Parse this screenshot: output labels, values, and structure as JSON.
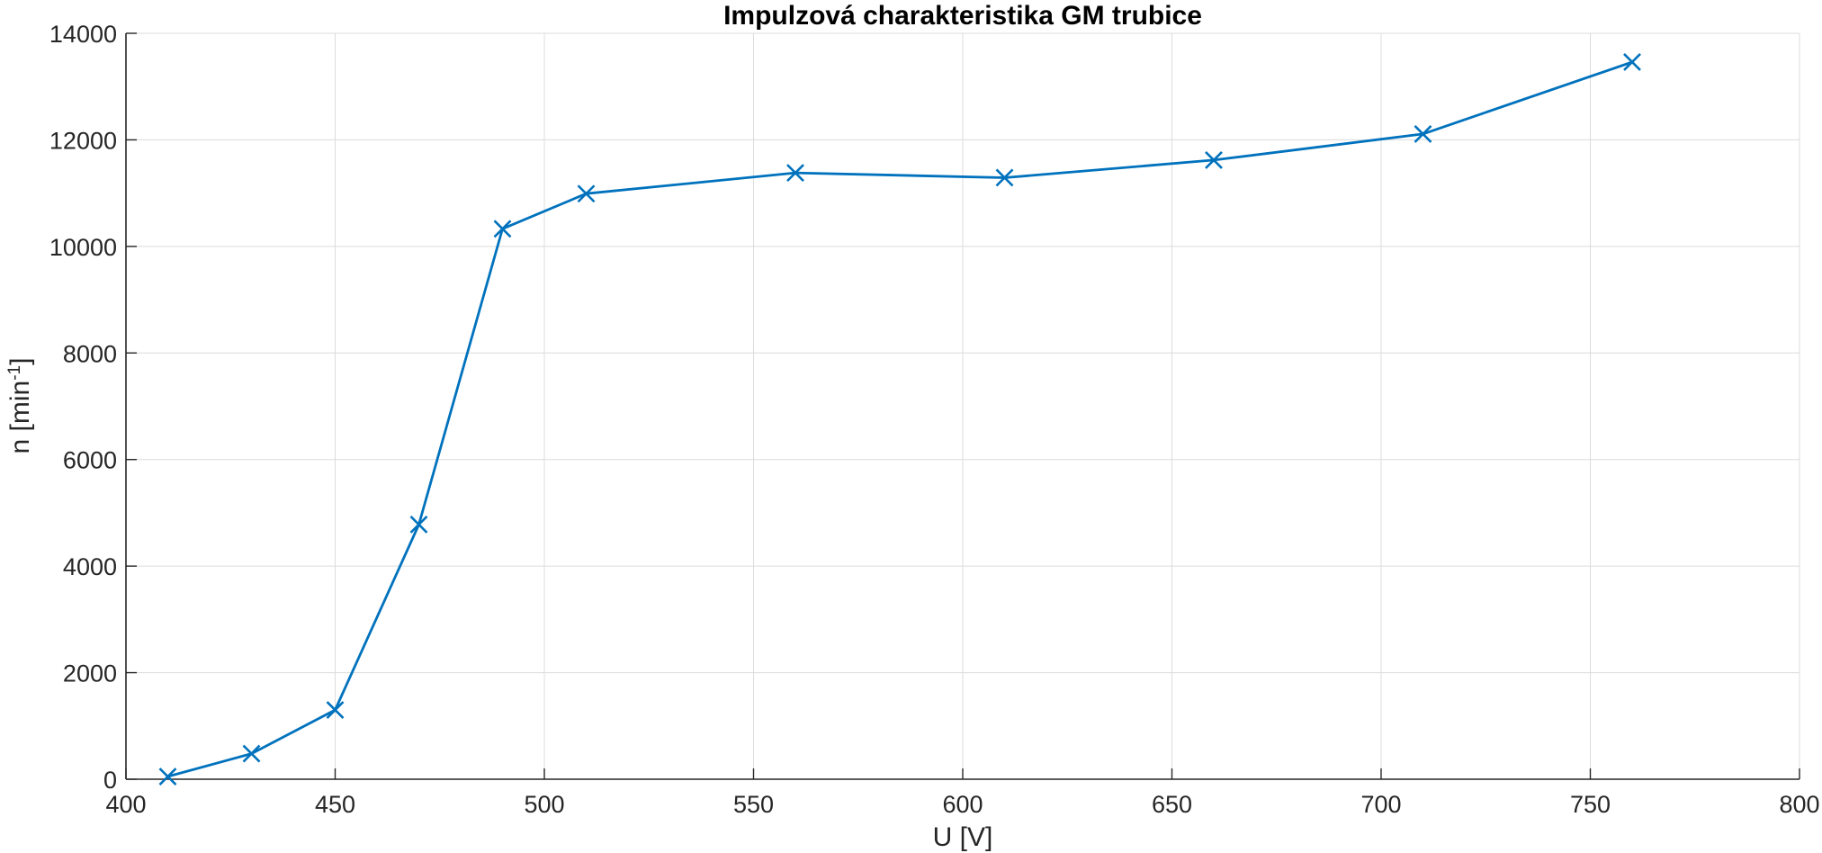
{
  "chart_data": {
    "type": "line",
    "title": "Impulzová charakteristika GM trubice",
    "xlabel": "U [V]",
    "ylabel": {
      "main": "n  [min",
      "sup": "-1",
      "end": "]"
    },
    "xlim": [
      400,
      800
    ],
    "ylim": [
      0,
      14000
    ],
    "xticks": [
      "400",
      "450",
      "500",
      "550",
      "600",
      "650",
      "700",
      "750",
      "800"
    ],
    "yticks": [
      "0",
      "2000",
      "4000",
      "6000",
      "8000",
      "10000",
      "12000",
      "14000"
    ],
    "grid": true,
    "line_color": "#0072BD",
    "marker": "x",
    "series": [
      {
        "x": [
          410,
          430,
          450,
          470,
          490,
          510,
          560,
          610,
          660,
          710,
          760
        ],
        "y": [
          50,
          480,
          1300,
          4780,
          10330,
          10990,
          11380,
          11290,
          11620,
          12110,
          13460
        ]
      }
    ]
  }
}
